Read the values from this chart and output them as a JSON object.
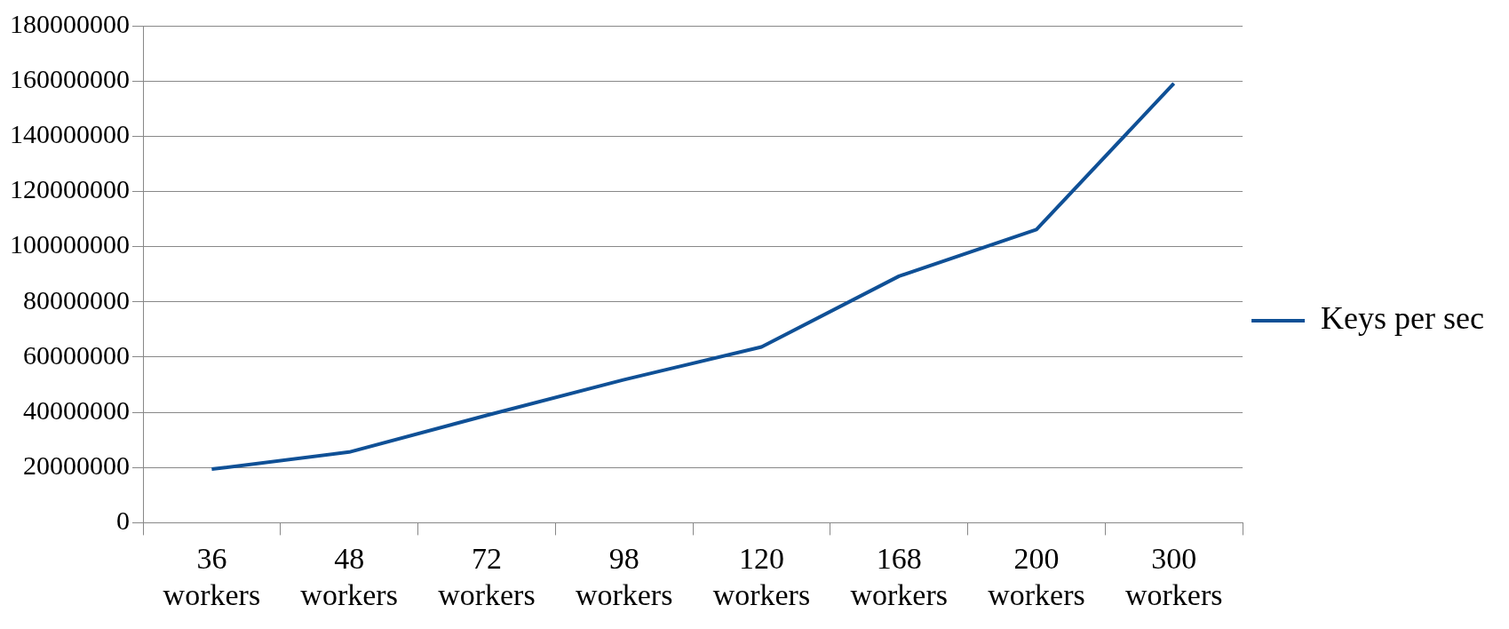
{
  "chart_data": {
    "type": "line",
    "categories": [
      "36 workers",
      "48 workers",
      "72 workers",
      "98 workers",
      "120 workers",
      "168 workers",
      "200 workers",
      "300 workers"
    ],
    "series": [
      {
        "name": "Keys per sec",
        "color": "#0f5096",
        "values": [
          19400000,
          25600000,
          38900000,
          51800000,
          63700000,
          89300000,
          106200000,
          159100000
        ]
      }
    ],
    "ylim": [
      0,
      180000000
    ],
    "yticks": [
      0,
      20000000,
      40000000,
      60000000,
      80000000,
      100000000,
      120000000,
      140000000,
      160000000,
      180000000
    ],
    "grid": "y",
    "legend": "right",
    "marker": "none",
    "line_style": "solid"
  }
}
